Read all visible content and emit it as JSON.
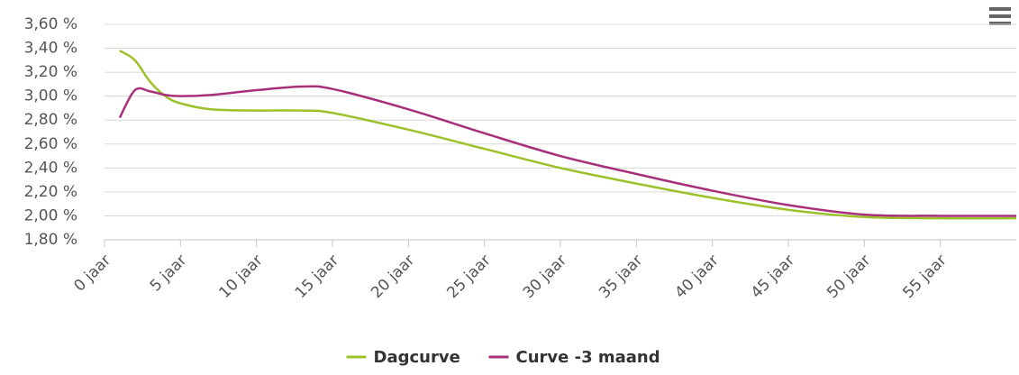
{
  "chart_data": {
    "type": "line",
    "x": [
      1,
      2,
      3,
      4,
      5,
      7,
      10,
      13,
      15,
      20,
      25,
      30,
      35,
      40,
      45,
      50,
      55,
      60
    ],
    "series": [
      {
        "name": "Dagcurve",
        "color": "#9dc12a",
        "values": [
          3.38,
          3.3,
          3.12,
          3.0,
          2.94,
          2.89,
          2.88,
          2.88,
          2.86,
          2.72,
          2.56,
          2.4,
          2.27,
          2.15,
          2.05,
          1.99,
          1.98,
          1.98
        ]
      },
      {
        "name": "Curve -3 maand",
        "color": "#a8307b",
        "values": [
          2.82,
          3.05,
          3.04,
          3.01,
          3.0,
          3.01,
          3.05,
          3.08,
          3.06,
          2.89,
          2.69,
          2.5,
          2.35,
          2.21,
          2.09,
          2.01,
          2.0,
          2.0
        ]
      }
    ],
    "xlim": [
      0,
      60
    ],
    "xticks": [
      {
        "value": 0,
        "label": "0 jaar"
      },
      {
        "value": 5,
        "label": "5 jaar"
      },
      {
        "value": 10,
        "label": "10 jaar"
      },
      {
        "value": 15,
        "label": "15 jaar"
      },
      {
        "value": 20,
        "label": "20 jaar"
      },
      {
        "value": 25,
        "label": "25 jaar"
      },
      {
        "value": 30,
        "label": "30 jaar"
      },
      {
        "value": 35,
        "label": "35 jaar"
      },
      {
        "value": 40,
        "label": "40 jaar"
      },
      {
        "value": 45,
        "label": "45 jaar"
      },
      {
        "value": 50,
        "label": "50 jaar"
      },
      {
        "value": 55,
        "label": "55 jaar"
      }
    ],
    "ylim": [
      1.8,
      3.6
    ],
    "yticks": [
      {
        "value": 1.8,
        "label": "1,80 %"
      },
      {
        "value": 2.0,
        "label": "2,00 %"
      },
      {
        "value": 2.2,
        "label": "2,20 %"
      },
      {
        "value": 2.4,
        "label": "2,40 %"
      },
      {
        "value": 2.6,
        "label": "2,60 %"
      },
      {
        "value": 2.8,
        "label": "2,80 %"
      },
      {
        "value": 3.0,
        "label": "3,00 %"
      },
      {
        "value": 3.2,
        "label": "3,20 %"
      },
      {
        "value": 3.4,
        "label": "3,40 %"
      },
      {
        "value": 3.6,
        "label": "3,60 %"
      }
    ],
    "grid": true
  }
}
